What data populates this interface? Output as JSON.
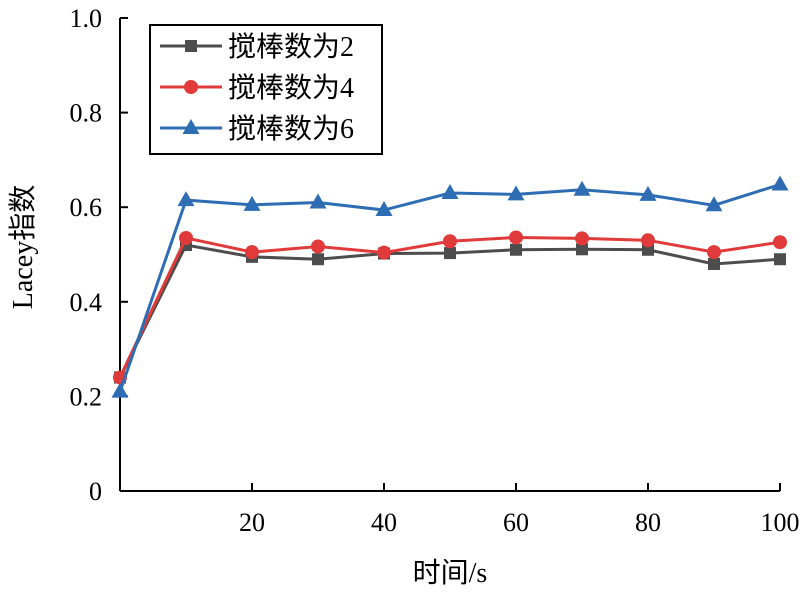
{
  "chart_data": {
    "type": "line",
    "xlabel": "时间/s",
    "ylabel": "Lacey指数",
    "xlim": [
      0,
      100
    ],
    "ylim": [
      0,
      1.0
    ],
    "x_ticks": [
      20,
      40,
      60,
      80,
      100
    ],
    "y_ticks": [
      0,
      0.2,
      0.4,
      0.6,
      0.8,
      1.0
    ],
    "y_tick_labels": [
      "0",
      "0.2",
      "0.4",
      "0.6",
      "0.8",
      "1.0"
    ],
    "x": [
      0,
      10,
      20,
      30,
      40,
      50,
      60,
      70,
      80,
      90,
      100
    ],
    "grid": false,
    "legend_position": "top-left",
    "series": [
      {
        "name": "搅棒数为2",
        "color": "#4d4d4d",
        "marker": "square",
        "values": [
          0.24,
          0.52,
          0.495,
          0.49,
          0.502,
          0.503,
          0.51,
          0.511,
          0.51,
          0.48,
          0.49
        ]
      },
      {
        "name": "搅棒数为4",
        "color": "#e03a3a",
        "marker": "circle",
        "values": [
          0.24,
          0.535,
          0.505,
          0.517,
          0.504,
          0.528,
          0.536,
          0.534,
          0.53,
          0.505,
          0.526
        ]
      },
      {
        "name": "搅棒数为6",
        "color": "#2e6db4",
        "marker": "triangle",
        "values": [
          0.21,
          0.615,
          0.605,
          0.61,
          0.594,
          0.63,
          0.627,
          0.637,
          0.626,
          0.604,
          0.648
        ]
      }
    ]
  }
}
